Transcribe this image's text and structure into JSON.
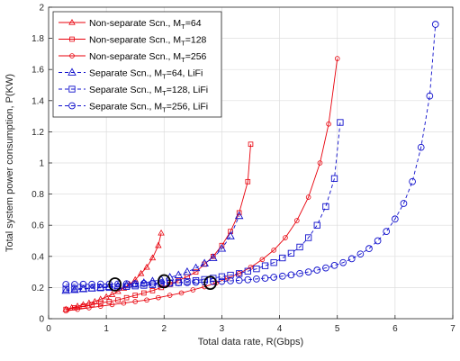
{
  "chart_data": {
    "type": "line",
    "title": "",
    "xlabel": "Total data rate, R(Gbps)",
    "ylabel": "Total system power consumption, P(KW)",
    "xlim": [
      0,
      7
    ],
    "ylim": [
      0,
      2
    ],
    "xticks": [
      0,
      1,
      2,
      3,
      4,
      5,
      6,
      7
    ],
    "yticks": [
      0,
      0.2,
      0.4,
      0.6,
      0.8,
      1,
      1.2,
      1.4,
      1.6,
      1.8,
      2
    ],
    "xtick_labels": [
      "0",
      "1",
      "2",
      "3",
      "4",
      "5",
      "6",
      "7"
    ],
    "ytick_labels": [
      "0",
      "0.2",
      "0.4",
      "0.6",
      "0.8",
      "1",
      "1.2",
      "1.4",
      "1.6",
      "1.8",
      "2"
    ],
    "grid": true,
    "legend_position": "top-left",
    "colors": {
      "red": "#e8000b",
      "blue": "#1010cc",
      "axis": "#262626",
      "grid": "#dddddd"
    },
    "series": [
      {
        "name": "Non-separate Scn., M",
        "name_sub": "T",
        "name_suffix": "=64",
        "color": "#e8000b",
        "marker": "triangle",
        "dash": "solid",
        "x": [
          0.3,
          0.4,
          0.5,
          0.6,
          0.7,
          0.8,
          0.9,
          1.0,
          1.1,
          1.2,
          1.3,
          1.4,
          1.5,
          1.6,
          1.7,
          1.8,
          1.9,
          1.95
        ],
        "y": [
          0.06,
          0.07,
          0.08,
          0.09,
          0.1,
          0.11,
          0.125,
          0.14,
          0.155,
          0.175,
          0.195,
          0.22,
          0.25,
          0.29,
          0.33,
          0.39,
          0.47,
          0.55
        ]
      },
      {
        "name": "Non-separate Scn., M",
        "name_sub": "T",
        "name_suffix": "=128",
        "color": "#e8000b",
        "marker": "square",
        "dash": "solid",
        "x": [
          0.3,
          0.45,
          0.6,
          0.75,
          0.9,
          1.05,
          1.2,
          1.35,
          1.5,
          1.65,
          1.8,
          1.95,
          2.1,
          2.25,
          2.4,
          2.55,
          2.7,
          2.85,
          3.0,
          3.15,
          3.3,
          3.45,
          3.5
        ],
        "y": [
          0.06,
          0.07,
          0.08,
          0.09,
          0.1,
          0.11,
          0.12,
          0.135,
          0.15,
          0.165,
          0.18,
          0.2,
          0.22,
          0.245,
          0.27,
          0.3,
          0.35,
          0.4,
          0.47,
          0.56,
          0.68,
          0.88,
          1.12
        ]
      },
      {
        "name": "Non-separate Scn., M",
        "name_sub": "T",
        "name_suffix": "=256",
        "color": "#e8000b",
        "marker": "circle",
        "dash": "solid",
        "x": [
          0.3,
          0.5,
          0.7,
          0.9,
          1.1,
          1.3,
          1.5,
          1.7,
          1.9,
          2.1,
          2.3,
          2.5,
          2.7,
          2.9,
          3.1,
          3.3,
          3.5,
          3.7,
          3.9,
          4.1,
          4.3,
          4.5,
          4.7,
          4.85,
          5.0
        ],
        "y": [
          0.05,
          0.06,
          0.07,
          0.08,
          0.09,
          0.1,
          0.11,
          0.12,
          0.135,
          0.15,
          0.165,
          0.185,
          0.205,
          0.23,
          0.26,
          0.29,
          0.33,
          0.38,
          0.44,
          0.52,
          0.63,
          0.78,
          1.0,
          1.25,
          1.67
        ]
      },
      {
        "name": "Separate Scn., M",
        "name_sub": "T",
        "name_suffix": "=64, LiFi",
        "color": "#1010cc",
        "marker": "triangle-open",
        "dash": "dashed",
        "x": [
          0.3,
          0.45,
          0.6,
          0.75,
          0.9,
          1.05,
          1.2,
          1.35,
          1.5,
          1.65,
          1.8,
          1.95,
          2.1,
          2.25,
          2.4,
          2.55,
          2.7,
          2.85,
          3.0,
          3.15,
          3.3
        ],
        "y": [
          0.18,
          0.185,
          0.19,
          0.195,
          0.2,
          0.205,
          0.21,
          0.215,
          0.22,
          0.23,
          0.24,
          0.25,
          0.265,
          0.28,
          0.3,
          0.325,
          0.355,
          0.39,
          0.45,
          0.53,
          0.66
        ]
      },
      {
        "name": "Separate Scn., M",
        "name_sub": "T",
        "name_suffix": "=128, LiFi",
        "color": "#1010cc",
        "marker": "square-open",
        "dash": "dashed",
        "x": [
          0.3,
          0.45,
          0.6,
          0.75,
          0.9,
          1.05,
          1.2,
          1.35,
          1.5,
          1.65,
          1.8,
          1.95,
          2.1,
          2.25,
          2.4,
          2.55,
          2.7,
          2.85,
          3.0,
          3.15,
          3.3,
          3.45,
          3.6,
          3.75,
          3.9,
          4.05,
          4.2,
          4.35,
          4.5,
          4.65,
          4.8,
          4.95,
          5.05
        ],
        "y": [
          0.19,
          0.192,
          0.194,
          0.196,
          0.198,
          0.2,
          0.203,
          0.206,
          0.21,
          0.214,
          0.218,
          0.222,
          0.227,
          0.232,
          0.238,
          0.245,
          0.252,
          0.26,
          0.27,
          0.28,
          0.29,
          0.305,
          0.32,
          0.34,
          0.36,
          0.39,
          0.42,
          0.46,
          0.52,
          0.6,
          0.72,
          0.9,
          1.26
        ]
      },
      {
        "name": "Separate Scn., M",
        "name_sub": "T",
        "name_suffix": "=256, LiFi",
        "color": "#1010cc",
        "marker": "circle-open",
        "dash": "dashed",
        "x": [
          0.3,
          0.45,
          0.6,
          0.75,
          0.9,
          1.05,
          1.2,
          1.35,
          1.5,
          1.65,
          1.8,
          1.95,
          2.1,
          2.25,
          2.4,
          2.55,
          2.7,
          2.85,
          3.0,
          3.15,
          3.3,
          3.45,
          3.6,
          3.75,
          3.9,
          4.05,
          4.2,
          4.35,
          4.5,
          4.65,
          4.8,
          4.95,
          5.1,
          5.25,
          5.4,
          5.55,
          5.7,
          5.85,
          6.0,
          6.15,
          6.3,
          6.45,
          6.6,
          6.7
        ],
        "y": [
          0.22,
          0.22,
          0.221,
          0.221,
          0.222,
          0.222,
          0.223,
          0.224,
          0.225,
          0.226,
          0.227,
          0.228,
          0.229,
          0.23,
          0.232,
          0.234,
          0.236,
          0.238,
          0.24,
          0.243,
          0.246,
          0.25,
          0.255,
          0.26,
          0.266,
          0.273,
          0.281,
          0.29,
          0.3,
          0.312,
          0.326,
          0.342,
          0.36,
          0.385,
          0.415,
          0.45,
          0.5,
          0.56,
          0.64,
          0.74,
          0.88,
          1.1,
          1.43,
          1.89
        ]
      }
    ],
    "annotations": [
      {
        "type": "ellipse",
        "x": 1.15,
        "y": 0.22,
        "rx": 0.1,
        "ry": 0.04
      },
      {
        "type": "ellipse",
        "x": 2.0,
        "y": 0.24,
        "rx": 0.1,
        "ry": 0.04
      },
      {
        "type": "ellipse",
        "x": 2.8,
        "y": 0.23,
        "rx": 0.1,
        "ry": 0.04
      }
    ]
  }
}
